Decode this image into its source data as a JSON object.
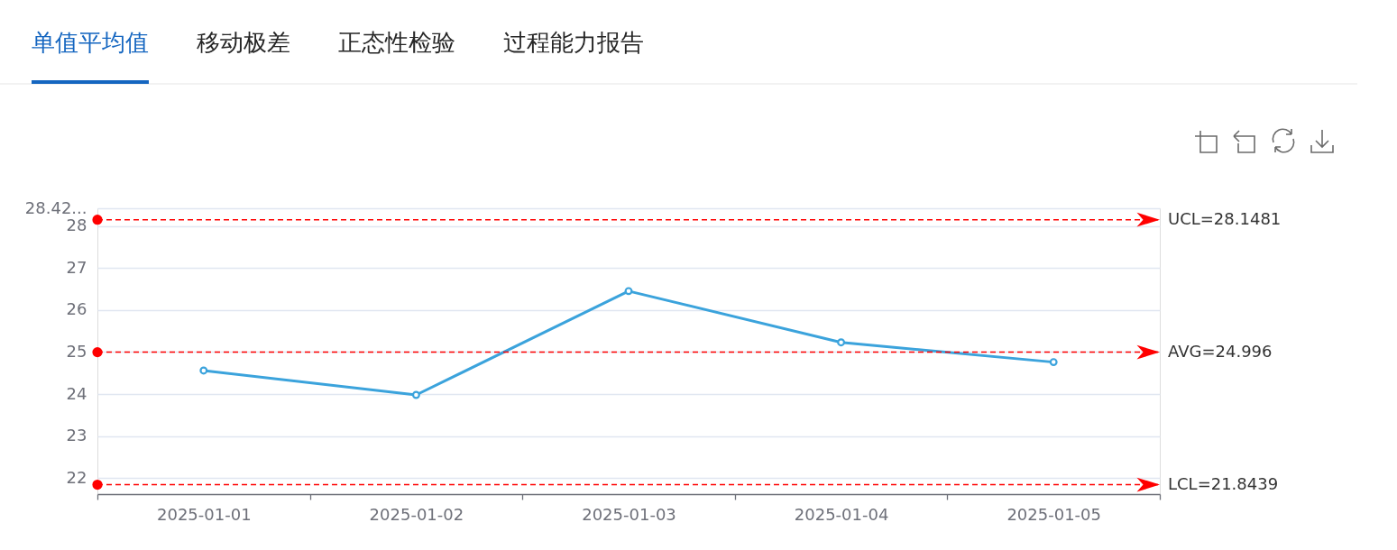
{
  "chart_data": {
    "type": "line",
    "title": "单值平均值",
    "annotations": [
      "移动极差",
      "正态性检验",
      "过程能力报告"
    ],
    "categories": [
      "2025-01-01",
      "2025-01-02",
      "2025-01-03",
      "2025-01-04",
      "2025-01-05"
    ],
    "series": [
      {
        "color": "#3ba3dc",
        "values": [
          24.56,
          23.98,
          26.45,
          25.23,
          24.76
        ]
      }
    ],
    "ylim": [
      21.62,
      28.42
    ],
    "yticks": [
      22,
      23,
      24,
      25,
      26,
      27,
      28,
      {
        "value": 28.42,
        "label": "28.42..."
      }
    ],
    "ref_lines": [
      {
        "axis": "y",
        "value": 28.1481,
        "label": "UCL=28.1481",
        "color": "#ff0000",
        "line_style": "dashed"
      },
      {
        "axis": "y",
        "value": 24.996,
        "label": "AVG=24.996",
        "color": "#ff0000",
        "line_style": "dashed"
      },
      {
        "axis": "y",
        "value": 21.8439,
        "label": "LCL=21.8439",
        "color": "#ff0000",
        "line_style": "dashed"
      }
    ],
    "grid": "y",
    "marker": "circle",
    "line_style": "solid"
  }
}
